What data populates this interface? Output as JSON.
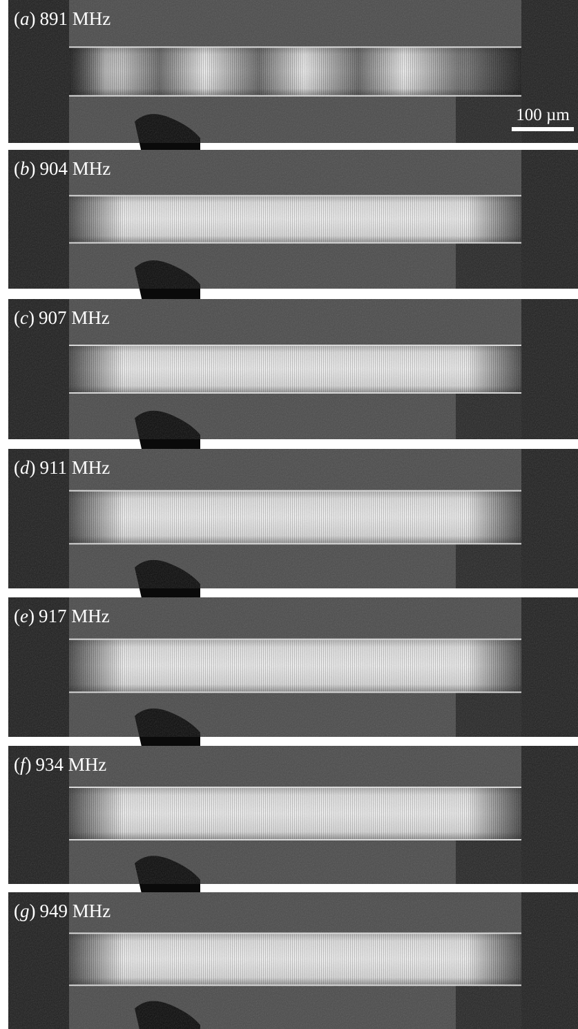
{
  "panels": [
    {
      "open": "(",
      "letter": "a",
      "close": ")",
      "frequency": "891 MHz"
    },
    {
      "open": "(",
      "letter": "b",
      "close": ")",
      "frequency": "904 MHz"
    },
    {
      "open": "(",
      "letter": "c",
      "close": ")",
      "frequency": "907 MHz"
    },
    {
      "open": "(",
      "letter": "d",
      "close": ")",
      "frequency": "911 MHz"
    },
    {
      "open": "(",
      "letter": "e",
      "close": ")",
      "frequency": "917 MHz"
    },
    {
      "open": "(",
      "letter": "f",
      "close": ")",
      "frequency": "934 MHz"
    },
    {
      "open": "(",
      "letter": "g",
      "close": ")",
      "frequency": "949 MHz"
    }
  ],
  "scale_bar": {
    "label": "100 µm"
  }
}
